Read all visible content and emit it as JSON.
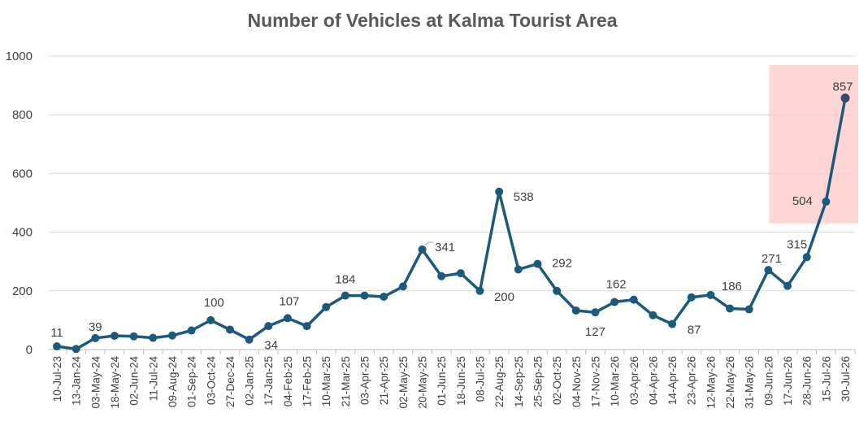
{
  "chart_data": {
    "type": "line",
    "title": "Number of Vehicles at Kalma Tourist Area",
    "xlabel": "",
    "ylabel": "",
    "ylim": [
      0,
      1000
    ],
    "yticks": [
      0,
      200,
      400,
      600,
      800,
      1000
    ],
    "grid": true,
    "legend": "none",
    "highlight": {
      "x_from": "15-Jul-26",
      "x_to": "30-Jul-26",
      "y_from": 430,
      "y_to": 970,
      "color": "#ffd6d6"
    },
    "colors": {
      "line": "#1c5a7d",
      "last_point": "#384a68",
      "grid": "#d9d9d9",
      "title": "#595959"
    },
    "categories": [
      "10-Jul-23",
      "13-Jan-24",
      "03-May-24",
      "18-May-24",
      "02-Jun-24",
      "11-Jul-24",
      "09-Aug-24",
      "01-Sep-24",
      "03-Oct-24",
      "27-Dec-24",
      "02-Jan-25",
      "17-Jan-25",
      "04-Feb-25",
      "17-Feb-25",
      "10-Mar-25",
      "21-Mar-25",
      "03-Apr-25",
      "21-Apr-25",
      "02-May-25",
      "20-May-25",
      "01-Jun-25",
      "18-Jun-25",
      "08-Jul-25",
      "22-Aug-25",
      "14-Sep-25",
      "25-Sep-25",
      "02-Oct-25",
      "04-Nov-25",
      "17-Nov-25",
      "10-Mar-26",
      "03-Apr-26",
      "04-Apr-26",
      "14-Apr-26",
      "23-Apr-26",
      "12-May-26",
      "22-May-26",
      "31-May-26",
      "09-Jun-26",
      "17-Jun-26",
      "28-Jun-26",
      "15-Jul-26",
      "30-Jul-26"
    ],
    "series": [
      {
        "values": [
          11,
          2,
          39,
          47,
          45,
          40,
          48,
          65,
          100,
          68,
          34,
          80,
          107,
          80,
          145,
          184,
          184,
          180,
          215,
          341,
          250,
          260,
          200,
          538,
          273,
          292,
          200,
          133,
          127,
          162,
          170,
          117,
          87,
          178,
          186,
          140,
          137,
          271,
          217,
          315,
          504,
          857
        ]
      }
    ],
    "data_labels": [
      {
        "index": 0,
        "text": "11"
      },
      {
        "index": 2,
        "text": "39"
      },
      {
        "index": 8,
        "text": "100"
      },
      {
        "index": 10,
        "text": "34"
      },
      {
        "index": 12,
        "text": "107"
      },
      {
        "index": 15,
        "text": "184"
      },
      {
        "index": 19,
        "text": "341"
      },
      {
        "index": 22,
        "text": "200"
      },
      {
        "index": 23,
        "text": "538"
      },
      {
        "index": 25,
        "text": "292"
      },
      {
        "index": 28,
        "text": "127"
      },
      {
        "index": 29,
        "text": "162"
      },
      {
        "index": 32,
        "text": "87"
      },
      {
        "index": 34,
        "text": "186"
      },
      {
        "index": 37,
        "text": "271"
      },
      {
        "index": 39,
        "text": "315"
      },
      {
        "index": 40,
        "text": "504"
      },
      {
        "index": 41,
        "text": "857"
      }
    ]
  }
}
